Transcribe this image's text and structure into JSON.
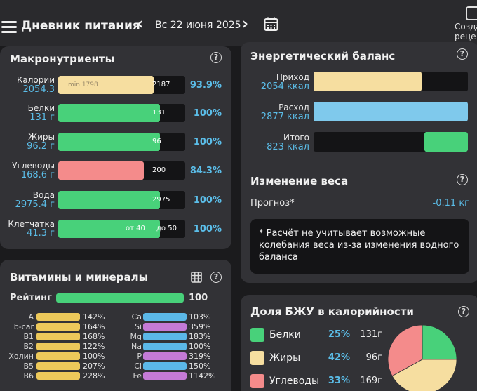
{
  "header": {
    "title": "Дневник питания",
    "date": "Вс 22 июня 2025",
    "create_label_1": "Созда",
    "create_label_2": "реце"
  },
  "macros": {
    "title": "Макронутриенты",
    "rows": [
      {
        "label": "Калории",
        "value": "2054.3",
        "target": "2187",
        "min": "min 1798",
        "percent": "93.9%",
        "fill": 0.939,
        "color": "#f6dea0"
      },
      {
        "label": "Белки",
        "value": "131 г",
        "target": "131",
        "percent": "100%",
        "fill": 1.0,
        "color": "#48d17a"
      },
      {
        "label": "Жиры",
        "value": "96.2 г",
        "target": "96",
        "percent": "100%",
        "fill": 1.0,
        "color": "#48d17a"
      },
      {
        "label": "Углеводы",
        "value": "168.6 г",
        "target": "200",
        "percent": "84.3%",
        "fill": 0.843,
        "color": "#f48b8b"
      },
      {
        "label": "Вода",
        "value": "2975.4 г",
        "target": "2975",
        "percent": "100%",
        "fill": 1.0,
        "color": "#48d17a"
      },
      {
        "label": "Клетчатка",
        "value": "41.3 г",
        "target_from": "от 40",
        "target_to": "до 50",
        "percent": "100%",
        "fill": 1.0,
        "color": "#48d17a"
      }
    ]
  },
  "energy": {
    "title": "Энергетический баланс",
    "rows": [
      {
        "label": "Приход",
        "value": "2054 ккал",
        "fill": 0.7,
        "color": "#f6dea0"
      },
      {
        "label": "Расход",
        "value": "2877 ккал",
        "fill": 1.0,
        "color": "#7fc9ec"
      },
      {
        "label": "Итого",
        "value": "-823 ккал",
        "fill": 0.29,
        "color": "#48d17a"
      }
    ]
  },
  "weight": {
    "title": "Изменение веса",
    "forecast_label": "Прогноз*",
    "forecast_value": "-0.11 кг",
    "note": "* Расчёт не учитывает возможные колебания веса из-за изменения водного баланса"
  },
  "vitamins": {
    "title": "Витамины и минералы",
    "rating_label": "Рейтинг",
    "rating_value": "100",
    "left": [
      {
        "name": "A",
        "percent": "142%"
      },
      {
        "name": "b-car",
        "percent": "164%"
      },
      {
        "name": "B1",
        "percent": "168%"
      },
      {
        "name": "B2",
        "percent": "122%"
      },
      {
        "name": "Холин",
        "percent": "100%"
      },
      {
        "name": "B5",
        "percent": "207%"
      },
      {
        "name": "B6",
        "percent": "228%"
      }
    ],
    "right": [
      {
        "name": "Ca",
        "percent": "103%",
        "color": "#5bb8e8"
      },
      {
        "name": "Si",
        "percent": "359%",
        "color": "#c47ad6"
      },
      {
        "name": "Mg",
        "percent": "183%",
        "color": "#5bb8e8"
      },
      {
        "name": "Na",
        "percent": "100%",
        "color": "#5bb8e8"
      },
      {
        "name": "P",
        "percent": "319%",
        "color": "#c47ad6"
      },
      {
        "name": "Cl",
        "percent": "150%",
        "color": "#5bb8e8"
      },
      {
        "name": "Fe",
        "percent": "1142%",
        "color": "#c47ad6"
      }
    ],
    "left_color": "#ecc85a"
  },
  "bju": {
    "title": "Доля БЖУ в калорийности",
    "rows": [
      {
        "name": "Белки",
        "percent": "25%",
        "grams": "131г",
        "share": 25,
        "color": "#48d17a"
      },
      {
        "name": "Жиры",
        "percent": "42%",
        "grams": "96г",
        "share": 42,
        "color": "#f6dea0"
      },
      {
        "name": "Углеводы",
        "percent": "33%",
        "grams": "169г",
        "share": 33,
        "color": "#f48b8b"
      }
    ]
  }
}
